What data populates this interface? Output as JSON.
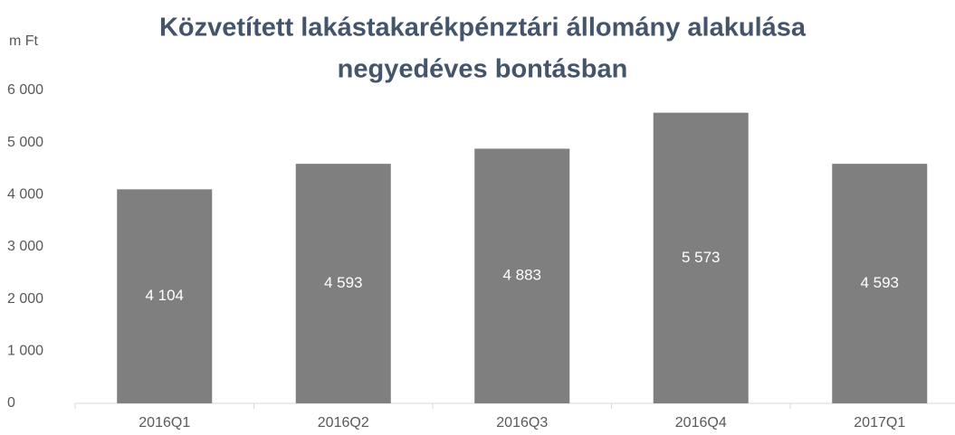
{
  "chart_data": {
    "type": "bar",
    "title": [
      "Közvetített lakástakarékpénztári állomány alakulása",
      "negyedéves bontásban"
    ],
    "y_unit": "m Ft",
    "categories": [
      "2016Q1",
      "2016Q2",
      "2016Q3",
      "2016Q4",
      "2017Q1"
    ],
    "values": [
      4104,
      4593,
      4883,
      5573,
      4593
    ],
    "value_labels": [
      "4 104",
      "4 593",
      "4 883",
      "5 573",
      "4 593"
    ],
    "color": "#7f7f7f",
    "ylim": [
      0,
      6000
    ],
    "yticks": [
      0,
      {
        "value": 1000,
        "label": "1 000"
      },
      {
        "value": 2000,
        "label": "2 000"
      },
      {
        "value": 3000,
        "label": "3 000"
      },
      {
        "value": 4000,
        "label": "4 000"
      },
      {
        "value": 5000,
        "label": "5 000"
      },
      {
        "value": 6000,
        "label": "6 000"
      }
    ],
    "grid": false
  }
}
